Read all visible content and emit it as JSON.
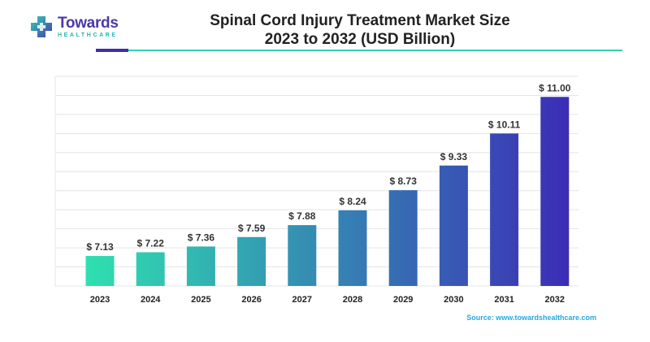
{
  "brand": {
    "name": "Towards",
    "subtitle": "HEALTHCARE"
  },
  "title_line1": "Spinal Cord Injury Treatment Market Size",
  "title_line2": "2023 to 2032 (USD Billion)",
  "source": "Source: www.towardshealthcare.com",
  "colors": {
    "bar_start": "#2fe0b0",
    "bar_end": "#3b2db5",
    "grid": "#e4e4e4",
    "label": "#333333",
    "accent_teal": "#2fd1b6",
    "accent_purple": "#3d2fa8"
  },
  "chart_data": {
    "type": "bar",
    "title": "Spinal Cord Injury Treatment Market Size 2023 to 2032 (USD Billion)",
    "categories": [
      "2023",
      "2024",
      "2025",
      "2026",
      "2027",
      "2028",
      "2029",
      "2030",
      "2031",
      "2032"
    ],
    "values": [
      7.13,
      7.22,
      7.36,
      7.59,
      7.88,
      8.24,
      8.73,
      9.33,
      10.11,
      11.0
    ],
    "value_labels": [
      "$ 7.13",
      "$ 7.22",
      "$ 7.36",
      "$ 7.59",
      "$ 7.88",
      "$ 8.24",
      "$ 8.73",
      "$ 9.33",
      "$ 10.11",
      "$ 11.00"
    ],
    "xlabel": "",
    "ylabel": "",
    "ylim": [
      6.4,
      11.5
    ],
    "grid": true,
    "legend": "none"
  }
}
